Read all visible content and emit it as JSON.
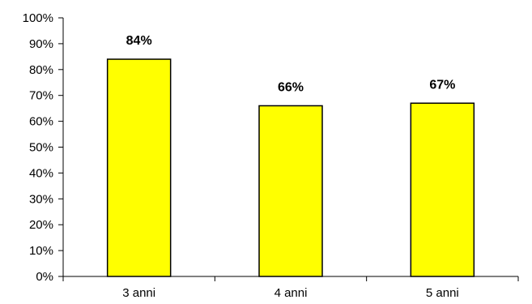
{
  "chart_data": {
    "type": "bar",
    "categories": [
      "3 anni",
      "4 anni",
      "5 anni"
    ],
    "values": [
      84,
      66,
      67
    ],
    "data_labels": [
      "84%",
      "66%",
      "67%"
    ],
    "y_tick_values": [
      0,
      10,
      20,
      30,
      40,
      50,
      60,
      70,
      80,
      90,
      100
    ],
    "y_tick_labels": [
      "0%",
      "10%",
      "20%",
      "30%",
      "40%",
      "50%",
      "60%",
      "70%",
      "80%",
      "90%",
      "100%"
    ],
    "ylim": [
      0,
      100
    ],
    "grid": false,
    "legend": "none",
    "colors": {
      "bar_fill": "#ffff00",
      "bar_stroke": "#000000",
      "axis": "#000000",
      "background": "#ffffff"
    }
  }
}
